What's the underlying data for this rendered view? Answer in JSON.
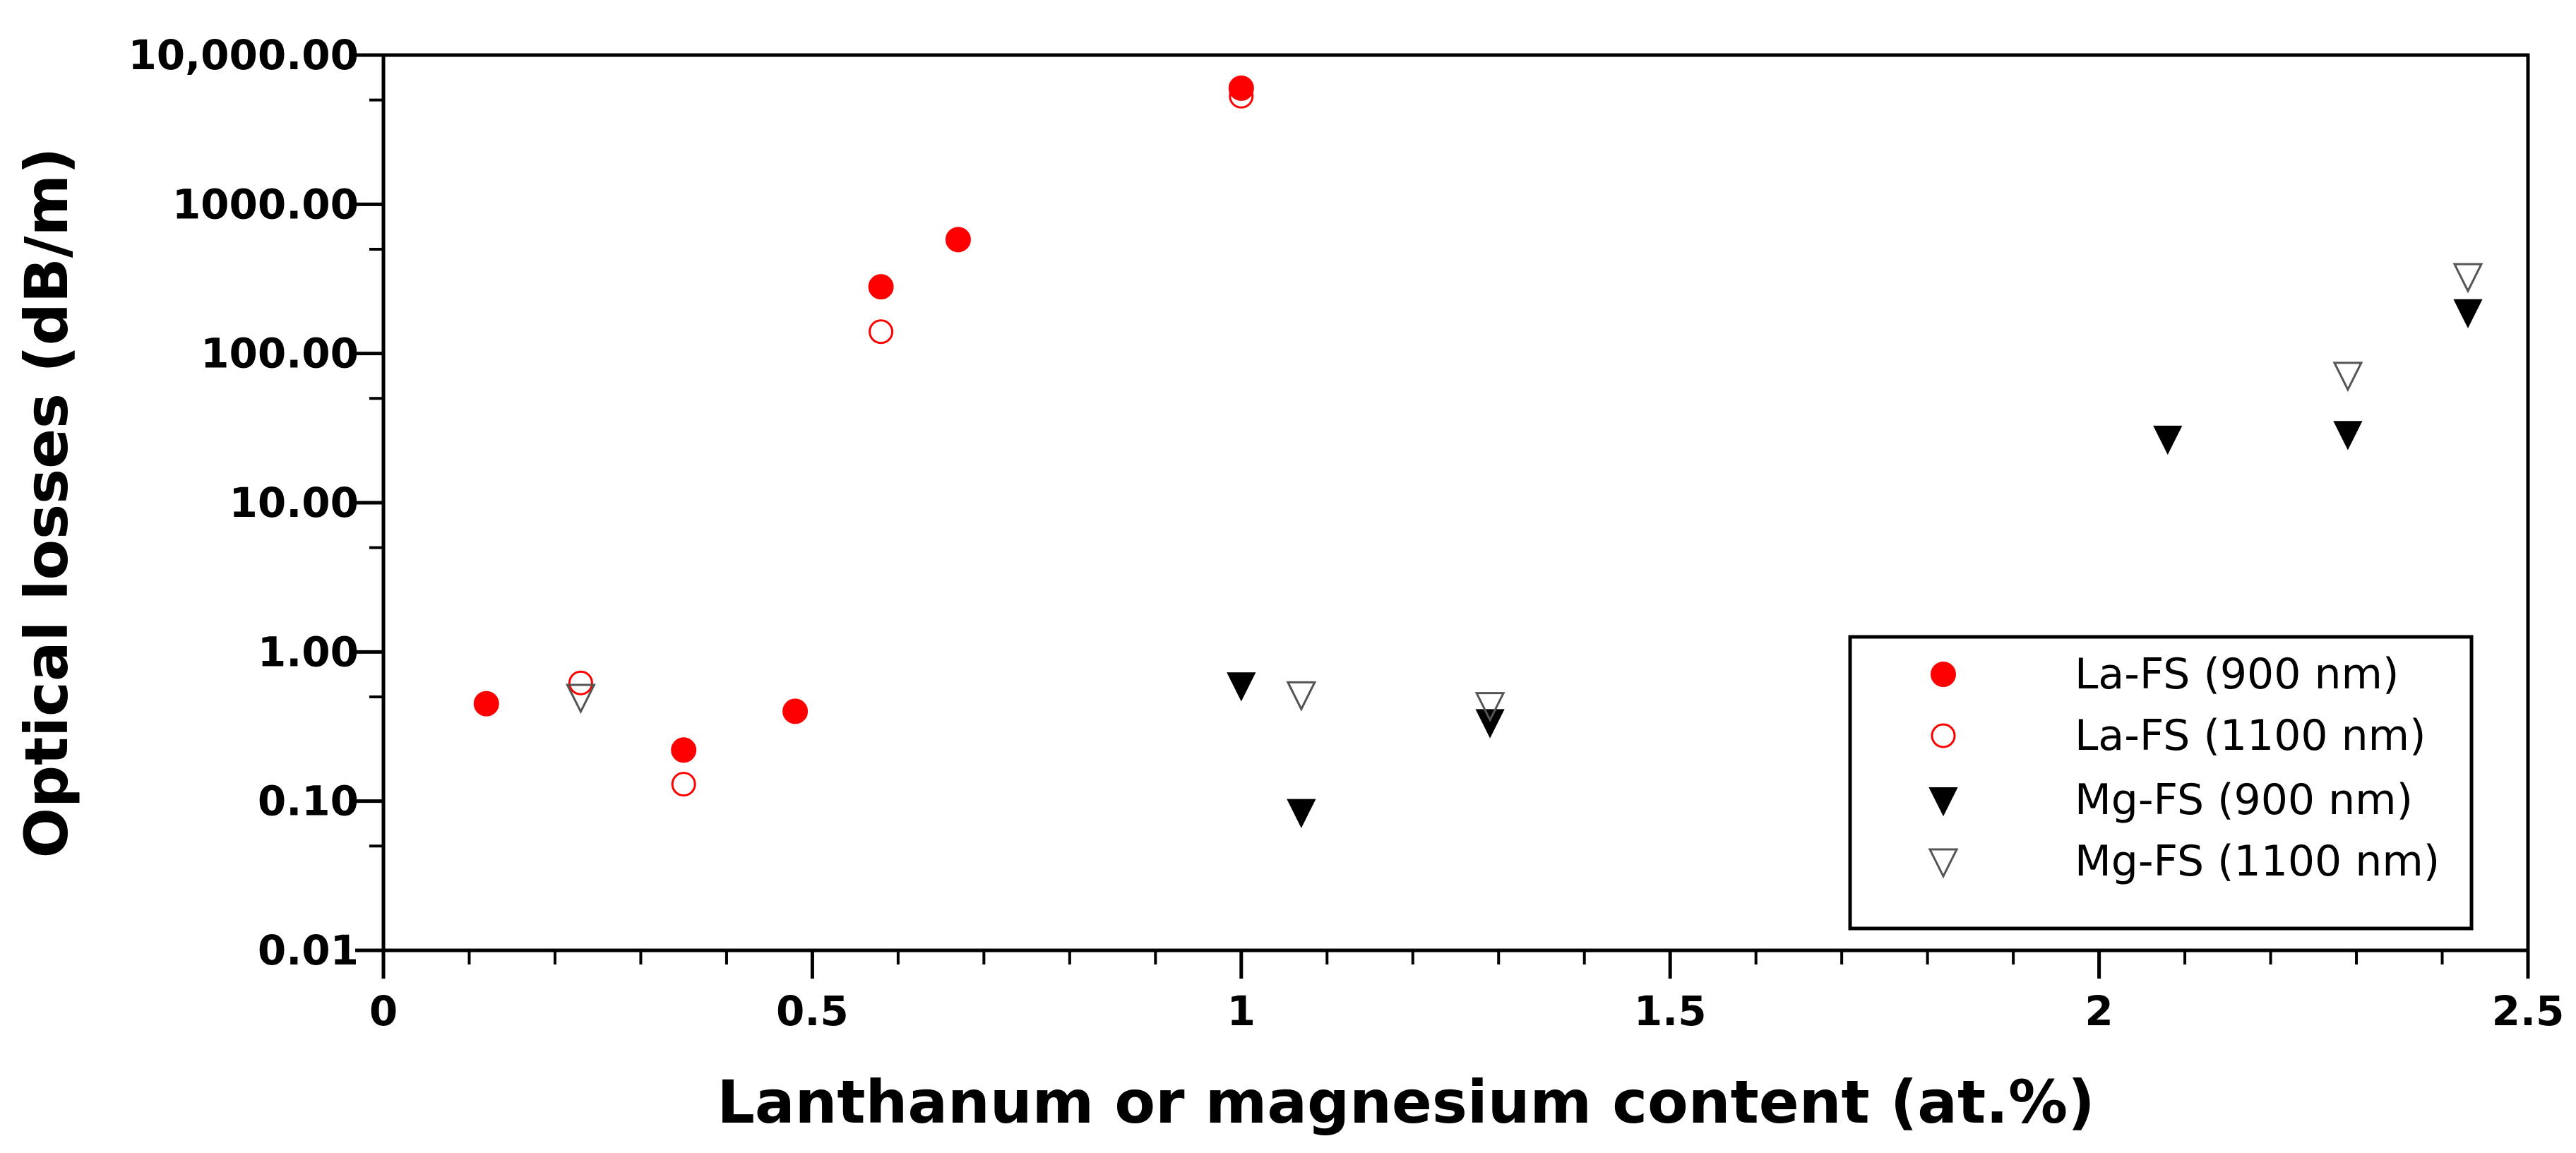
{
  "chart_data": {
    "type": "scatter",
    "title": "",
    "xlabel": "Lanthanum or magnesium content (at.%)",
    "ylabel": "Optical losses (dB/m)",
    "xlim": [
      0,
      2.5
    ],
    "ylim": [
      0.01,
      10000
    ],
    "y_scale": "log",
    "grid": false,
    "legend_position": "bottom-right",
    "x_ticks": [
      "0",
      "0.5",
      "1",
      "1.5",
      "2",
      "2.5"
    ],
    "y_ticks": [
      "0.01",
      "0.10",
      "1.00",
      "10.00",
      "100.00",
      "1000.00",
      "10,000.00"
    ],
    "series": [
      {
        "name": "La-FS (900 nm)",
        "marker": "circle-filled",
        "color": "#ff0000",
        "points": [
          {
            "x": 0.12,
            "y": 0.45
          },
          {
            "x": 0.35,
            "y": 0.22
          },
          {
            "x": 0.48,
            "y": 0.4
          },
          {
            "x": 0.58,
            "y": 280
          },
          {
            "x": 0.67,
            "y": 580
          },
          {
            "x": 1.0,
            "y": 6000
          }
        ]
      },
      {
        "name": "La-FS (1100 nm)",
        "marker": "circle-open",
        "color": "#ff0000",
        "points": [
          {
            "x": 0.23,
            "y": 0.62
          },
          {
            "x": 0.35,
            "y": 0.13
          },
          {
            "x": 0.58,
            "y": 140
          },
          {
            "x": 1.0,
            "y": 5300
          }
        ]
      },
      {
        "name": "Mg-FS (900 nm)",
        "marker": "triangle-down-filled",
        "color": "#000000",
        "points": [
          {
            "x": 1.0,
            "y": 0.6
          },
          {
            "x": 1.07,
            "y": 0.085
          },
          {
            "x": 1.29,
            "y": 0.34
          },
          {
            "x": 2.08,
            "y": 27
          },
          {
            "x": 2.29,
            "y": 29
          },
          {
            "x": 2.43,
            "y": 190
          }
        ]
      },
      {
        "name": "Mg-FS (1100 nm)",
        "marker": "triangle-down-open",
        "color": "#000000",
        "points": [
          {
            "x": 0.23,
            "y": 0.5
          },
          {
            "x": 1.07,
            "y": 0.52
          },
          {
            "x": 1.29,
            "y": 0.44
          },
          {
            "x": 2.29,
            "y": 72
          },
          {
            "x": 2.43,
            "y": 330
          }
        ]
      }
    ]
  }
}
